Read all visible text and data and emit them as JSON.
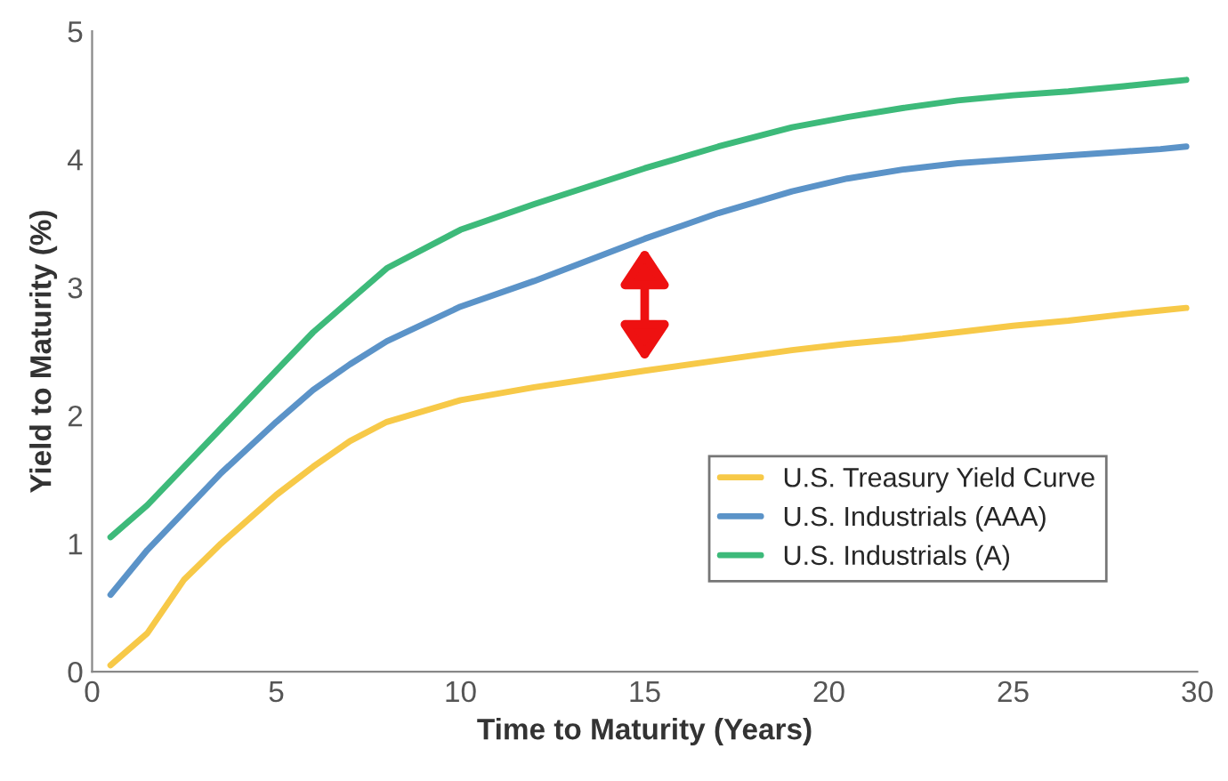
{
  "chart_data": {
    "type": "line",
    "xlabel": "Time to Maturity (Years)",
    "ylabel": "Yield to Maturity (%)",
    "xlim": [
      0,
      30
    ],
    "ylim": [
      0,
      5
    ],
    "xticks": [
      0,
      5,
      10,
      15,
      20,
      25,
      30
    ],
    "yticks": [
      0,
      1,
      2,
      3,
      4,
      5
    ],
    "grid": false,
    "legend": "bottom right",
    "marker": "none",
    "line_style": "solid",
    "series": [
      {
        "name": "U.S. Treasury Yield Curve",
        "color": "#f7c948",
        "x": [
          0.5,
          1.5,
          2.5,
          3.5,
          5,
          6,
          7,
          8,
          10,
          12,
          15,
          17,
          19,
          20.5,
          22,
          23.5,
          25,
          26.5,
          28,
          29,
          29.7
        ],
        "values": [
          0.05,
          0.3,
          0.72,
          1.0,
          1.38,
          1.6,
          1.8,
          1.95,
          2.12,
          2.22,
          2.35,
          2.43,
          2.51,
          2.56,
          2.6,
          2.65,
          2.7,
          2.74,
          2.79,
          2.82,
          2.84
        ]
      },
      {
        "name": "U.S. Industrials (AAA)",
        "color": "#5b93c8",
        "x": [
          0.5,
          1.5,
          2.5,
          3.5,
          5,
          6,
          7,
          8,
          10,
          12,
          15,
          17,
          19,
          20.5,
          22,
          23.5,
          25,
          26.5,
          28,
          29,
          29.7
        ],
        "values": [
          0.6,
          0.95,
          1.25,
          1.55,
          1.95,
          2.2,
          2.4,
          2.58,
          2.85,
          3.05,
          3.38,
          3.58,
          3.75,
          3.85,
          3.92,
          3.97,
          4.0,
          4.03,
          4.06,
          4.08,
          4.1
        ]
      },
      {
        "name": "U.S. Industrials (A)",
        "color": "#3dba7a",
        "x": [
          0.5,
          1.5,
          2.5,
          3.5,
          5,
          6,
          7,
          8,
          10,
          12,
          15,
          17,
          19,
          20.5,
          22,
          23.5,
          25,
          26.5,
          28,
          29,
          29.7
        ],
        "values": [
          1.05,
          1.3,
          1.6,
          1.9,
          2.35,
          2.65,
          2.9,
          3.15,
          3.45,
          3.65,
          3.93,
          4.1,
          4.25,
          4.33,
          4.4,
          4.46,
          4.5,
          4.53,
          4.57,
          4.6,
          4.62
        ]
      }
    ]
  }
}
